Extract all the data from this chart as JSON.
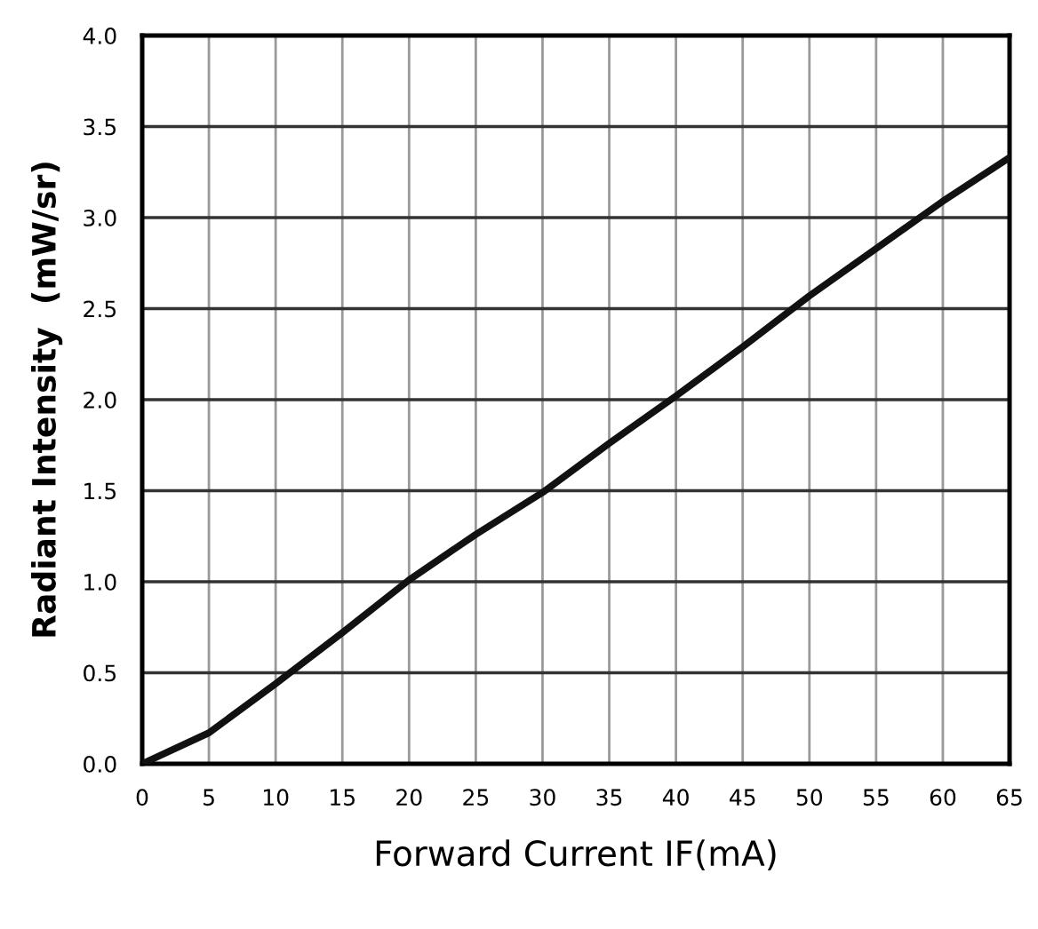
{
  "chart_data": {
    "type": "line",
    "xlabel": "Forward Current IF(mA)",
    "ylabel": "Radiant Intensity  (mW/sr)",
    "x": [
      0,
      5,
      10,
      15,
      20,
      25,
      30,
      35,
      40,
      45,
      50,
      55,
      60,
      65
    ],
    "series": [
      {
        "color": "#111111",
        "values": [
          0,
          0.17,
          0.44,
          0.72,
          1.01,
          1.26,
          1.49,
          1.76,
          2.02,
          2.29,
          2.57,
          2.83,
          3.09,
          3.33
        ]
      }
    ],
    "xlim": [
      0,
      65
    ],
    "xticks": [
      0,
      5,
      10,
      15,
      20,
      25,
      30,
      35,
      40,
      45,
      50,
      55,
      60,
      65
    ],
    "ylim": [
      0,
      4
    ],
    "yticks": [
      {
        "value": 0,
        "label": "0.0"
      },
      {
        "value": 0.5,
        "label": "0.5"
      },
      {
        "value": 1,
        "label": "1.0"
      },
      {
        "value": 1.5,
        "label": "1.5"
      },
      {
        "value": 2,
        "label": "2.0"
      },
      {
        "value": 2.5,
        "label": "2.5"
      },
      {
        "value": 3,
        "label": "3.0"
      },
      {
        "value": 3.5,
        "label": "3.5"
      },
      {
        "value": 4,
        "label": "4.0"
      }
    ],
    "grid": true,
    "marker": "none",
    "line_style": "solid"
  }
}
